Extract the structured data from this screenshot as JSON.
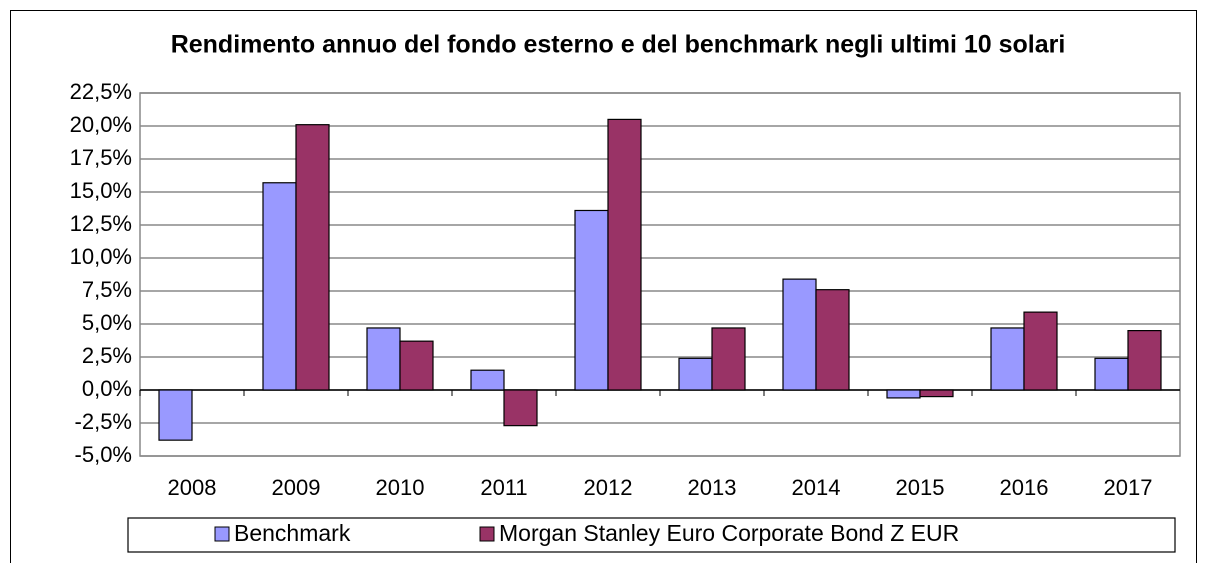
{
  "chart_data": {
    "type": "bar",
    "title": "Rendimento annuo del fondo esterno e del benchmark negli ultimi 10 solari",
    "categories": [
      "2008",
      "2009",
      "2010",
      "2011",
      "2012",
      "2013",
      "2014",
      "2015",
      "2016",
      "2017"
    ],
    "series": [
      {
        "name": "Benchmark",
        "color": "#9999ff",
        "values": [
          -3.8,
          15.7,
          4.7,
          1.5,
          13.6,
          2.4,
          8.4,
          -0.6,
          4.7,
          2.4
        ]
      },
      {
        "name": "Morgan Stanley Euro Corporate Bond Z EUR",
        "color": "#993366",
        "values": [
          null,
          20.1,
          3.7,
          -2.7,
          20.5,
          4.7,
          7.6,
          -0.5,
          5.9,
          4.5
        ]
      }
    ],
    "ylim": [
      -5,
      22.5
    ],
    "yticks": [
      {
        "value": -5,
        "label": "-5,0%"
      },
      {
        "value": -2.5,
        "label": "-2,5%"
      },
      {
        "value": 0,
        "label": "0,0%"
      },
      {
        "value": 2.5,
        "label": "2,5%"
      },
      {
        "value": 5,
        "label": "5,0%"
      },
      {
        "value": 7.5,
        "label": "7,5%"
      },
      {
        "value": 10,
        "label": "10,0%"
      },
      {
        "value": 12.5,
        "label": "12,5%"
      },
      {
        "value": 15,
        "label": "15,0%"
      },
      {
        "value": 17.5,
        "label": "17,5%"
      },
      {
        "value": 20,
        "label": "20,0%"
      },
      {
        "value": 22.5,
        "label": "22,5%"
      }
    ],
    "grid": true,
    "legend": "bottom"
  }
}
